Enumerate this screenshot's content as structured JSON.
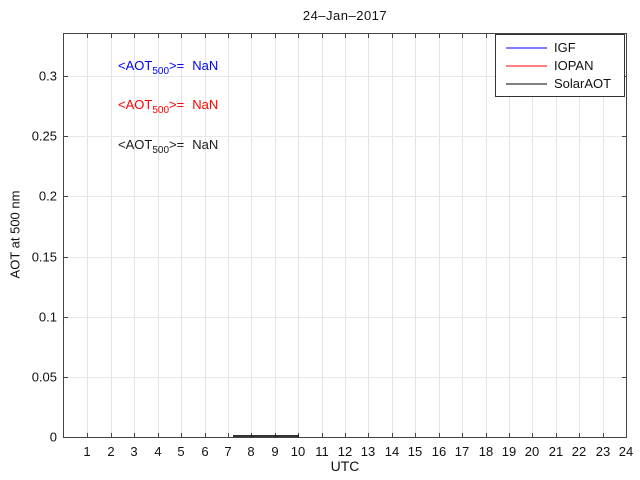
{
  "chart_data": {
    "type": "line",
    "title": "24–Jan–2017",
    "xlabel": "UTC",
    "ylabel": "AOT at 500 nm",
    "xlim": [
      0,
      24
    ],
    "ylim": [
      0,
      0.335
    ],
    "xticks": [
      1,
      2,
      3,
      4,
      5,
      6,
      7,
      8,
      9,
      10,
      11,
      12,
      13,
      14,
      15,
      16,
      17,
      18,
      19,
      20,
      21,
      22,
      23,
      24
    ],
    "ytick_values": [
      0,
      0.05,
      0.1,
      0.15,
      0.2,
      0.25,
      0.3
    ],
    "ytick_labels": [
      "0",
      "0.05",
      "0.1",
      "0.15",
      "0.2",
      "0.25",
      "0.3"
    ],
    "grid": true,
    "colors": {
      "axis": "#444444",
      "grid": "#e4e4e4",
      "background": "#ffffff",
      "igf_blue": "#0000ff",
      "iopan_red": "#ff0000",
      "solaraot_black": "#000000"
    },
    "legend": {
      "position": "top-right",
      "entries": [
        {
          "label": "IGF",
          "color": "#0000ff"
        },
        {
          "label": "IOPAN",
          "color": "#ff0000"
        },
        {
          "label": "SolarAOT",
          "color": "#000000"
        }
      ]
    },
    "series": [
      {
        "name": "IGF",
        "color": "#0000ff",
        "mean_aot_500": "NaN",
        "segments": []
      },
      {
        "name": "IOPAN",
        "color": "#ff0000",
        "mean_aot_500": "NaN",
        "segments": []
      },
      {
        "name": "SolarAOT",
        "color": "#000000",
        "mean_aot_500": "NaN",
        "segments": [
          {
            "x_start": 7.2,
            "x_end": 10.0,
            "y": 0.001
          }
        ]
      }
    ],
    "annotations": [
      {
        "prefix": "<AOT",
        "sub": "500",
        "mid": ">=",
        "value": "NaN",
        "color": "#0000ff",
        "anchor_x": 2.34,
        "anchor_y": 0.307
      },
      {
        "prefix": "<AOT",
        "sub": "500",
        "mid": ">=",
        "value": "NaN",
        "color": "#ff0000",
        "anchor_x": 2.34,
        "anchor_y": 0.274
      },
      {
        "prefix": "<AOT",
        "sub": "500",
        "mid": ">=",
        "value": "NaN",
        "color": "#1a1a1a",
        "anchor_x": 2.34,
        "anchor_y": 0.241
      }
    ]
  }
}
